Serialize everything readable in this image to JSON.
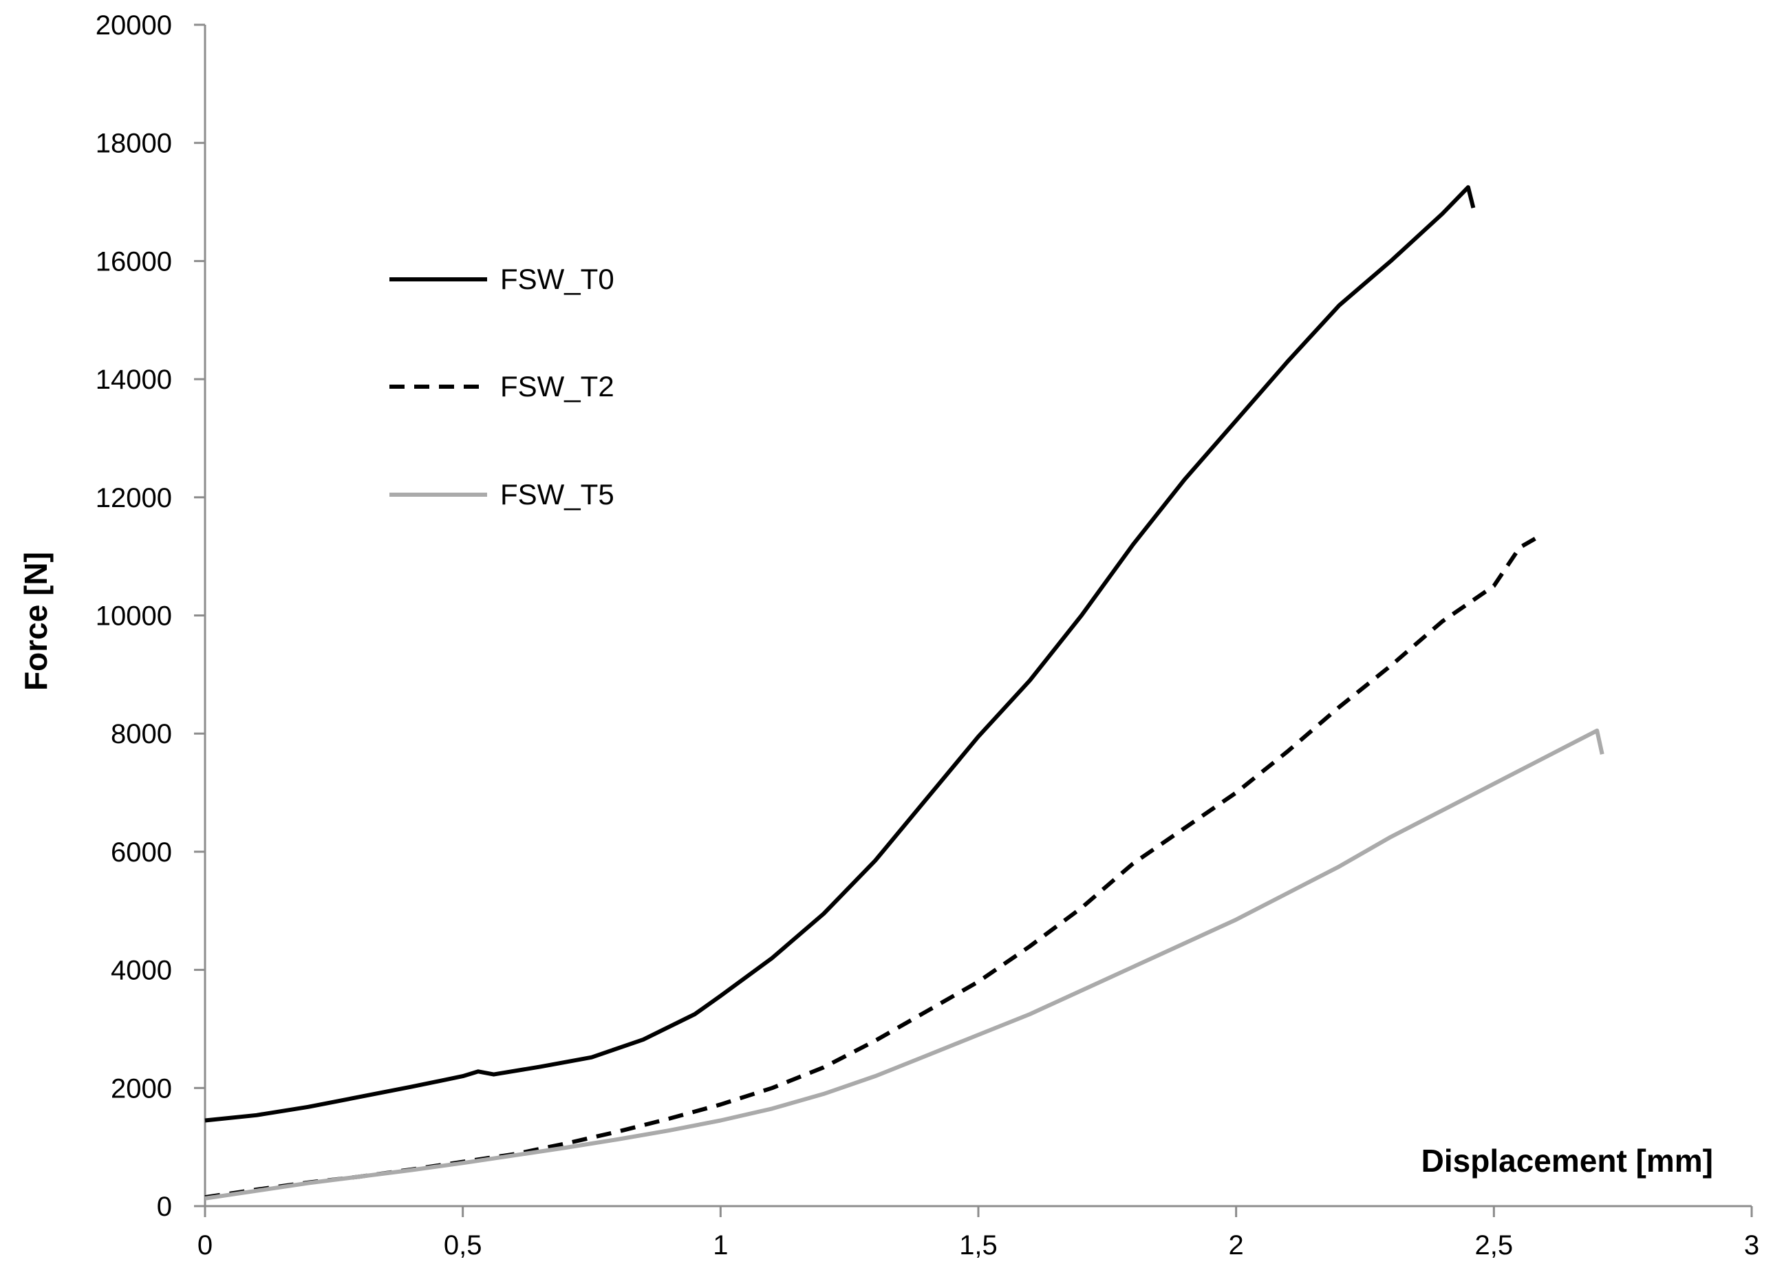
{
  "chart_data": {
    "type": "line",
    "xlabel": "Displacement [mm]",
    "ylabel": "Force [N]",
    "xlim": [
      0,
      3
    ],
    "ylim": [
      0,
      20000
    ],
    "x_ticks": [
      0,
      0.5,
      1,
      1.5,
      2,
      2.5,
      3
    ],
    "x_tick_labels": [
      "0",
      "0,5",
      "1",
      "1,5",
      "2",
      "2,5",
      "3"
    ],
    "y_ticks": [
      0,
      2000,
      4000,
      6000,
      8000,
      10000,
      12000,
      14000,
      16000,
      18000,
      20000
    ],
    "y_tick_labels": [
      "0",
      "2000",
      "4000",
      "6000",
      "8000",
      "10000",
      "12000",
      "14000",
      "16000",
      "18000",
      "20000"
    ],
    "grid": false,
    "legend_position": "upper-left",
    "series": [
      {
        "name": "FSW_T0",
        "style": "solid",
        "color": "#000000",
        "points": [
          [
            0,
            1450
          ],
          [
            0.1,
            1540
          ],
          [
            0.2,
            1680
          ],
          [
            0.3,
            1850
          ],
          [
            0.4,
            2020
          ],
          [
            0.5,
            2200
          ],
          [
            0.53,
            2280
          ],
          [
            0.56,
            2230
          ],
          [
            0.65,
            2360
          ],
          [
            0.75,
            2520
          ],
          [
            0.85,
            2820
          ],
          [
            0.95,
            3250
          ],
          [
            1.0,
            3560
          ],
          [
            1.1,
            4200
          ],
          [
            1.2,
            4950
          ],
          [
            1.3,
            5850
          ],
          [
            1.4,
            6900
          ],
          [
            1.5,
            7950
          ],
          [
            1.6,
            8900
          ],
          [
            1.7,
            10000
          ],
          [
            1.8,
            11200
          ],
          [
            1.9,
            12300
          ],
          [
            2.0,
            13300
          ],
          [
            2.1,
            14300
          ],
          [
            2.2,
            15250
          ],
          [
            2.3,
            16000
          ],
          [
            2.4,
            16800
          ],
          [
            2.45,
            17250
          ],
          [
            2.46,
            16900
          ]
        ]
      },
      {
        "name": "FSW_T2",
        "style": "dashed",
        "color": "#000000",
        "points": [
          [
            0,
            150
          ],
          [
            0.1,
            280
          ],
          [
            0.2,
            400
          ],
          [
            0.3,
            500
          ],
          [
            0.4,
            620
          ],
          [
            0.5,
            750
          ],
          [
            0.6,
            880
          ],
          [
            0.7,
            1060
          ],
          [
            0.8,
            1260
          ],
          [
            0.9,
            1480
          ],
          [
            1.0,
            1720
          ],
          [
            1.1,
            2000
          ],
          [
            1.2,
            2350
          ],
          [
            1.3,
            2800
          ],
          [
            1.4,
            3300
          ],
          [
            1.5,
            3800
          ],
          [
            1.6,
            4400
          ],
          [
            1.7,
            5050
          ],
          [
            1.8,
            5800
          ],
          [
            1.9,
            6400
          ],
          [
            2.0,
            7000
          ],
          [
            2.1,
            7700
          ],
          [
            2.2,
            8450
          ],
          [
            2.3,
            9150
          ],
          [
            2.4,
            9900
          ],
          [
            2.5,
            10500
          ],
          [
            2.55,
            11150
          ],
          [
            2.58,
            11300
          ]
        ]
      },
      {
        "name": "FSW_T5",
        "style": "solid",
        "color": "#aaaaaa",
        "points": [
          [
            0,
            130
          ],
          [
            0.1,
            260
          ],
          [
            0.2,
            390
          ],
          [
            0.3,
            500
          ],
          [
            0.4,
            610
          ],
          [
            0.5,
            730
          ],
          [
            0.6,
            860
          ],
          [
            0.7,
            990
          ],
          [
            0.8,
            1130
          ],
          [
            0.9,
            1280
          ],
          [
            1.0,
            1450
          ],
          [
            1.1,
            1650
          ],
          [
            1.2,
            1900
          ],
          [
            1.3,
            2200
          ],
          [
            1.4,
            2550
          ],
          [
            1.5,
            2900
          ],
          [
            1.6,
            3250
          ],
          [
            1.7,
            3650
          ],
          [
            1.8,
            4050
          ],
          [
            1.9,
            4450
          ],
          [
            2.0,
            4850
          ],
          [
            2.1,
            5300
          ],
          [
            2.2,
            5750
          ],
          [
            2.3,
            6250
          ],
          [
            2.4,
            6700
          ],
          [
            2.5,
            7150
          ],
          [
            2.6,
            7600
          ],
          [
            2.7,
            8050
          ],
          [
            2.71,
            7650
          ]
        ]
      }
    ]
  }
}
